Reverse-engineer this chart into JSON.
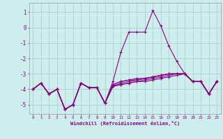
{
  "xlabel": "Windchill (Refroidissement éolien,°C)",
  "background_color": "#ceeeed",
  "grid_color": "#aed4d3",
  "line_color": "#880088",
  "xlim": [
    -0.5,
    23.5
  ],
  "ylim": [
    -5.6,
    1.6
  ],
  "yticks": [
    1,
    0,
    -1,
    -2,
    -3,
    -4,
    -5
  ],
  "xticks": [
    0,
    1,
    2,
    3,
    4,
    5,
    6,
    7,
    8,
    9,
    10,
    11,
    12,
    13,
    14,
    15,
    16,
    17,
    18,
    19,
    20,
    21,
    22,
    23
  ],
  "series": [
    [
      [
        0,
        -4.0
      ],
      [
        1,
        -3.6
      ],
      [
        2,
        -4.3
      ],
      [
        3,
        -4.0
      ],
      [
        4,
        -5.3
      ],
      [
        5,
        -5.0
      ],
      [
        6,
        -3.6
      ],
      [
        7,
        -3.9
      ],
      [
        8,
        -3.9
      ],
      [
        9,
        -4.9
      ],
      [
        10,
        -3.5
      ],
      [
        11,
        -1.6
      ],
      [
        12,
        -0.3
      ],
      [
        13,
        -0.3
      ],
      [
        14,
        -0.3
      ],
      [
        15,
        1.1
      ],
      [
        16,
        0.1
      ],
      [
        17,
        -1.2
      ],
      [
        18,
        -2.2
      ],
      [
        19,
        -3.0
      ],
      [
        20,
        -3.5
      ],
      [
        21,
        -3.5
      ],
      [
        22,
        -4.3
      ],
      [
        23,
        -3.5
      ]
    ],
    [
      [
        0,
        -4.0
      ],
      [
        1,
        -3.6
      ],
      [
        2,
        -4.3
      ],
      [
        3,
        -4.0
      ],
      [
        4,
        -5.3
      ],
      [
        5,
        -5.0
      ],
      [
        6,
        -3.6
      ],
      [
        7,
        -3.9
      ],
      [
        8,
        -3.9
      ],
      [
        9,
        -4.9
      ],
      [
        10,
        -3.7
      ],
      [
        11,
        -3.5
      ],
      [
        12,
        -3.4
      ],
      [
        13,
        -3.4
      ],
      [
        14,
        -3.3
      ],
      [
        15,
        -3.2
      ],
      [
        16,
        -3.1
      ],
      [
        17,
        -3.0
      ],
      [
        18,
        -3.0
      ],
      [
        19,
        -3.0
      ],
      [
        20,
        -3.5
      ],
      [
        21,
        -3.5
      ],
      [
        22,
        -4.3
      ],
      [
        23,
        -3.5
      ]
    ],
    [
      [
        0,
        -4.0
      ],
      [
        1,
        -3.6
      ],
      [
        2,
        -4.3
      ],
      [
        3,
        -4.0
      ],
      [
        4,
        -5.3
      ],
      [
        5,
        -5.0
      ],
      [
        6,
        -3.6
      ],
      [
        7,
        -3.9
      ],
      [
        8,
        -3.9
      ],
      [
        9,
        -4.9
      ],
      [
        10,
        -3.7
      ],
      [
        11,
        -3.5
      ],
      [
        12,
        -3.4
      ],
      [
        13,
        -3.3
      ],
      [
        14,
        -3.3
      ],
      [
        15,
        -3.2
      ],
      [
        16,
        -3.1
      ],
      [
        17,
        -3.0
      ],
      [
        18,
        -3.0
      ],
      [
        19,
        -3.0
      ],
      [
        20,
        -3.5
      ],
      [
        21,
        -3.5
      ],
      [
        22,
        -4.3
      ],
      [
        23,
        -3.5
      ]
    ],
    [
      [
        0,
        -4.0
      ],
      [
        1,
        -3.6
      ],
      [
        2,
        -4.3
      ],
      [
        3,
        -4.0
      ],
      [
        4,
        -5.3
      ],
      [
        5,
        -5.0
      ],
      [
        6,
        -3.6
      ],
      [
        7,
        -3.9
      ],
      [
        8,
        -3.9
      ],
      [
        9,
        -4.9
      ],
      [
        10,
        -3.8
      ],
      [
        11,
        -3.6
      ],
      [
        12,
        -3.5
      ],
      [
        13,
        -3.4
      ],
      [
        14,
        -3.3
      ],
      [
        15,
        -3.2
      ],
      [
        16,
        -3.1
      ],
      [
        17,
        -3.0
      ],
      [
        18,
        -3.0
      ],
      [
        19,
        -3.0
      ],
      [
        20,
        -3.5
      ],
      [
        21,
        -3.5
      ],
      [
        22,
        -4.3
      ],
      [
        23,
        -3.5
      ]
    ],
    [
      [
        0,
        -4.0
      ],
      [
        1,
        -3.6
      ],
      [
        2,
        -4.3
      ],
      [
        3,
        -4.0
      ],
      [
        4,
        -5.3
      ],
      [
        5,
        -5.0
      ],
      [
        6,
        -3.6
      ],
      [
        7,
        -3.9
      ],
      [
        8,
        -3.9
      ],
      [
        9,
        -4.9
      ],
      [
        10,
        -3.8
      ],
      [
        11,
        -3.7
      ],
      [
        12,
        -3.6
      ],
      [
        13,
        -3.5
      ],
      [
        14,
        -3.4
      ],
      [
        15,
        -3.3
      ],
      [
        16,
        -3.2
      ],
      [
        17,
        -3.1
      ],
      [
        18,
        -3.0
      ],
      [
        19,
        -3.0
      ],
      [
        20,
        -3.5
      ],
      [
        21,
        -3.5
      ],
      [
        22,
        -4.3
      ],
      [
        23,
        -3.5
      ]
    ],
    [
      [
        0,
        -4.0
      ],
      [
        1,
        -3.6
      ],
      [
        2,
        -4.3
      ],
      [
        3,
        -4.0
      ],
      [
        4,
        -5.3
      ],
      [
        5,
        -5.0
      ],
      [
        6,
        -3.6
      ],
      [
        7,
        -3.9
      ],
      [
        8,
        -3.9
      ],
      [
        9,
        -4.9
      ],
      [
        10,
        -3.8
      ],
      [
        11,
        -3.7
      ],
      [
        12,
        -3.6
      ],
      [
        13,
        -3.5
      ],
      [
        14,
        -3.5
      ],
      [
        15,
        -3.4
      ],
      [
        16,
        -3.3
      ],
      [
        17,
        -3.2
      ],
      [
        18,
        -3.1
      ],
      [
        19,
        -3.0
      ],
      [
        20,
        -3.5
      ],
      [
        21,
        -3.5
      ],
      [
        22,
        -4.3
      ],
      [
        23,
        -3.5
      ]
    ]
  ]
}
